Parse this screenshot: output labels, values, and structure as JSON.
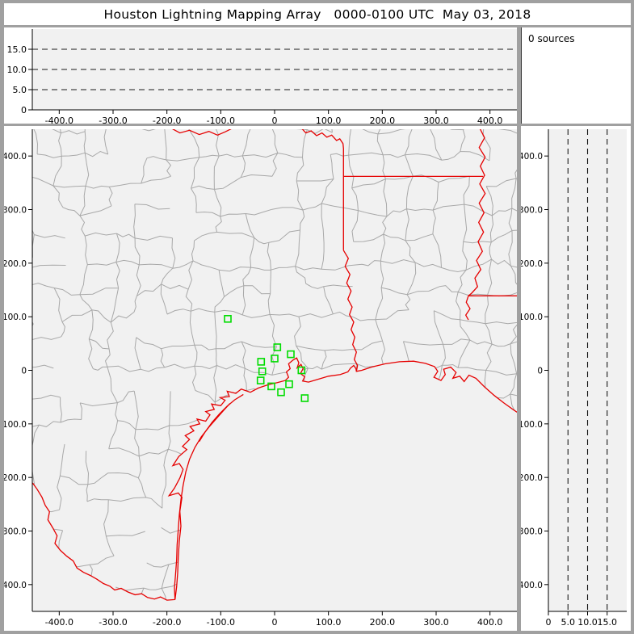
{
  "window": {
    "title": "Houston Lightning Mapping Array   0000-0100 UTC  May 03, 2018"
  },
  "sources_panel": {
    "label": "0 sources"
  },
  "colors": {
    "frame_gray": "#a0a0a0",
    "panel_white": "#ffffff",
    "plot_bg": "#f1f1f1",
    "county_line": "#a8a8a8",
    "state_border_red": "#e60000",
    "station_green": "#00dd00",
    "axis_black": "#000000"
  },
  "xy_axis": {
    "range": [
      -450,
      450
    ],
    "tick_values": [
      -400,
      -300,
      -200,
      -100,
      0,
      100,
      200,
      300,
      400
    ],
    "tick_labels": [
      "-400.0",
      "-300.0",
      "-200.0",
      "-100.0",
      "0",
      "100.0",
      "200.0",
      "300.0",
      "400.0"
    ]
  },
  "alt_axis": {
    "range": [
      0,
      20
    ],
    "tick_values": [
      0,
      5,
      10,
      15
    ],
    "tick_labels": [
      "0",
      "5.0",
      "10.0",
      "15.0"
    ],
    "dashed_gridlines": [
      5,
      10,
      15
    ]
  },
  "map": {
    "stations_km": [
      [
        -87,
        96
      ],
      [
        5,
        43
      ],
      [
        30,
        30
      ],
      [
        0,
        22
      ],
      [
        -25,
        16
      ],
      [
        -23,
        -2
      ],
      [
        50,
        0
      ],
      [
        -26,
        -19
      ],
      [
        -6,
        -30
      ],
      [
        27,
        -26
      ],
      [
        12,
        -41
      ],
      [
        56,
        -52
      ]
    ],
    "county_grid": {
      "seed": 11,
      "cell_km": 50,
      "node_jitter_km": 13,
      "wobble_km": 6,
      "skip_west": 0.32,
      "skip_east": 0.14,
      "west_limit_km": -160
    },
    "borders_km": {
      "red_river_west": [
        [
          -192,
          452
        ],
        [
          -176,
          443
        ],
        [
          -158,
          448
        ],
        [
          -140,
          440
        ],
        [
          -122,
          446
        ],
        [
          -106,
          439
        ],
        [
          -92,
          445
        ],
        [
          -80,
          451
        ]
      ],
      "red_river_east_and_txar": [
        [
          50,
          452
        ],
        [
          58,
          443
        ],
        [
          68,
          447
        ],
        [
          78,
          438
        ],
        [
          88,
          443
        ],
        [
          97,
          435
        ],
        [
          106,
          439
        ],
        [
          115,
          429
        ],
        [
          121,
          432
        ],
        [
          127,
          423
        ],
        [
          128,
          414
        ],
        [
          128,
          224
        ]
      ],
      "ar_la_border": [
        [
          128,
          362
        ],
        [
          387,
          362
        ]
      ],
      "sabine_river": [
        [
          128,
          224
        ],
        [
          137,
          209
        ],
        [
          131,
          194
        ],
        [
          140,
          179
        ],
        [
          134,
          163
        ],
        [
          142,
          148
        ],
        [
          136,
          133
        ],
        [
          144,
          118
        ],
        [
          139,
          104
        ],
        [
          147,
          90
        ],
        [
          142,
          76
        ],
        [
          149,
          62
        ],
        [
          145,
          48
        ],
        [
          152,
          34
        ],
        [
          148,
          20
        ],
        [
          154,
          9
        ],
        [
          152,
          -2
        ]
      ],
      "mississippi_river": [
        [
          381,
          452
        ],
        [
          390,
          434
        ],
        [
          380,
          416
        ],
        [
          391,
          398
        ],
        [
          382,
          381
        ],
        [
          390,
          364
        ],
        [
          381,
          348
        ],
        [
          391,
          330
        ],
        [
          380,
          312
        ],
        [
          389,
          294
        ],
        [
          379,
          276
        ],
        [
          388,
          258
        ],
        [
          378,
          240
        ],
        [
          386,
          222
        ],
        [
          375,
          205
        ],
        [
          383,
          188
        ],
        [
          372,
          172
        ],
        [
          377,
          156
        ],
        [
          366,
          144
        ],
        [
          360,
          139
        ],
        [
          356,
          127
        ],
        [
          363,
          115
        ],
        [
          355,
          103
        ],
        [
          360,
          94
        ]
      ],
      "la_ms_border": [
        [
          360,
          139
        ],
        [
          478,
          139
        ]
      ],
      "gulf_coast": [
        [
          -185,
          -428
        ],
        [
          -182,
          -404
        ],
        [
          -180,
          -378
        ],
        [
          -179,
          -350
        ],
        [
          -177,
          -319
        ],
        [
          -174,
          -291
        ],
        [
          -176,
          -263
        ],
        [
          -172,
          -237
        ],
        [
          -179,
          -229
        ],
        [
          -196,
          -234
        ],
        [
          -186,
          -220
        ],
        [
          -176,
          -201
        ],
        [
          -170,
          -185
        ],
        [
          -177,
          -174
        ],
        [
          -189,
          -178
        ],
        [
          -178,
          -161
        ],
        [
          -163,
          -148
        ],
        [
          -171,
          -142
        ],
        [
          -158,
          -129
        ],
        [
          -166,
          -122
        ],
        [
          -150,
          -113
        ],
        [
          -157,
          -105
        ],
        [
          -139,
          -100
        ],
        [
          -144,
          -91
        ],
        [
          -128,
          -95
        ],
        [
          -120,
          -83
        ],
        [
          -128,
          -77
        ],
        [
          -112,
          -73
        ],
        [
          -117,
          -63
        ],
        [
          -100,
          -66
        ],
        [
          -92,
          -56
        ],
        [
          -101,
          -51
        ],
        [
          -84,
          -49
        ],
        [
          -88,
          -39
        ],
        [
          -72,
          -43
        ],
        [
          -62,
          -35
        ],
        [
          -45,
          -41
        ],
        [
          -30,
          -33
        ],
        [
          -12,
          -27
        ],
        [
          5,
          -23
        ],
        [
          20,
          -19
        ],
        [
          26,
          -13
        ],
        [
          22,
          -3
        ],
        [
          29,
          3
        ],
        [
          26,
          12
        ],
        [
          34,
          19
        ],
        [
          41,
          23
        ],
        [
          45,
          14
        ],
        [
          42,
          5
        ],
        [
          49,
          11
        ],
        [
          53,
          3
        ],
        [
          48,
          -6
        ],
        [
          56,
          -12
        ],
        [
          52,
          -20
        ],
        [
          63,
          -22
        ],
        [
          80,
          -17
        ],
        [
          100,
          -11
        ],
        [
          122,
          -8
        ],
        [
          136,
          -3
        ],
        [
          141,
          4
        ],
        [
          147,
          9
        ],
        [
          151,
          3
        ],
        [
          152,
          -2
        ],
        [
          162,
          0
        ],
        [
          180,
          6
        ],
        [
          205,
          12
        ],
        [
          232,
          16
        ],
        [
          258,
          17
        ],
        [
          280,
          13
        ],
        [
          297,
          7
        ],
        [
          303,
          -2
        ],
        [
          296,
          -13
        ],
        [
          309,
          -19
        ],
        [
          317,
          -8
        ],
        [
          314,
          2
        ],
        [
          327,
          6
        ],
        [
          337,
          -4
        ],
        [
          331,
          -15
        ],
        [
          344,
          -11
        ],
        [
          352,
          -21
        ],
        [
          361,
          -9
        ],
        [
          374,
          -15
        ],
        [
          390,
          -31
        ],
        [
          408,
          -47
        ],
        [
          426,
          -61
        ],
        [
          444,
          -74
        ],
        [
          462,
          -86
        ],
        [
          480,
          -98
        ]
      ],
      "barrier_island_south": [
        [
          -83,
          -62
        ],
        [
          -95,
          -75
        ],
        [
          -108,
          -90
        ],
        [
          -122,
          -106
        ],
        [
          -136,
          -124
        ],
        [
          -148,
          -144
        ],
        [
          -158,
          -166
        ],
        [
          -165,
          -190
        ],
        [
          -170,
          -215
        ],
        [
          -174,
          -242
        ],
        [
          -177,
          -270
        ],
        [
          -179,
          -298
        ],
        [
          -181,
          -326
        ],
        [
          -182,
          -354
        ],
        [
          -184,
          -382
        ],
        [
          -186,
          -406
        ],
        [
          -185,
          -428
        ]
      ],
      "barrier_island_mid": [
        [
          -58,
          -45
        ],
        [
          -74,
          -55
        ],
        [
          -88,
          -67
        ],
        [
          -102,
          -81
        ],
        [
          -116,
          -97
        ],
        [
          -129,
          -115
        ],
        [
          -140,
          -133
        ]
      ],
      "rio_grande": [
        [
          -480,
          -196
        ],
        [
          -462,
          -203
        ],
        [
          -449,
          -211
        ],
        [
          -441,
          -222
        ],
        [
          -432,
          -237
        ],
        [
          -426,
          -252
        ],
        [
          -418,
          -264
        ],
        [
          -421,
          -279
        ],
        [
          -412,
          -294
        ],
        [
          -404,
          -309
        ],
        [
          -408,
          -323
        ],
        [
          -398,
          -336
        ],
        [
          -386,
          -347
        ],
        [
          -374,
          -356
        ],
        [
          -367,
          -369
        ],
        [
          -355,
          -377
        ],
        [
          -342,
          -383
        ],
        [
          -330,
          -390
        ],
        [
          -318,
          -398
        ],
        [
          -306,
          -403
        ],
        [
          -297,
          -410
        ],
        [
          -285,
          -407
        ],
        [
          -272,
          -414
        ],
        [
          -259,
          -419
        ],
        [
          -247,
          -417
        ],
        [
          -236,
          -424
        ],
        [
          -223,
          -427
        ],
        [
          -212,
          -423
        ],
        [
          -200,
          -429
        ],
        [
          -185,
          -428
        ]
      ]
    }
  },
  "chart_data": [
    {
      "type": "scatter",
      "panel": "top-altitude-vs-east-west",
      "title": "",
      "xlabel": "",
      "ylabel": "",
      "x_range": [
        -450,
        450
      ],
      "y_range": [
        0,
        20
      ],
      "x_ticks": [
        "-400.0",
        "-300.0",
        "-200.0",
        "-100.0",
        "0",
        "100.0",
        "200.0",
        "300.0",
        "400.0"
      ],
      "y_ticks": [
        "0",
        "5.0",
        "10.0",
        "15.0"
      ],
      "gridlines_y_dashed": [
        5,
        10,
        15
      ],
      "points": [],
      "note": "0 sources plotted"
    },
    {
      "type": "scatter",
      "panel": "plan-view-map",
      "title": "",
      "x_range": [
        -450,
        450
      ],
      "y_range": [
        -450,
        450
      ],
      "x_ticks": [
        "-400.0",
        "-300.0",
        "-200.0",
        "-100.0",
        "0",
        "100.0",
        "200.0",
        "300.0",
        "400.0"
      ],
      "y_ticks": [
        "-400.0",
        "-300.0",
        "-200.0",
        "-100.0",
        "0",
        "100.0",
        "200.0",
        "300.0",
        "400.0"
      ],
      "series": [
        {
          "name": "lma-stations",
          "marker": "open-green-square",
          "points": [
            [
              -87,
              96
            ],
            [
              5,
              43
            ],
            [
              30,
              30
            ],
            [
              0,
              22
            ],
            [
              -25,
              16
            ],
            [
              -23,
              -2
            ],
            [
              50,
              0
            ],
            [
              -26,
              -19
            ],
            [
              -6,
              -30
            ],
            [
              27,
              -26
            ],
            [
              12,
              -41
            ],
            [
              56,
              -52
            ]
          ]
        },
        {
          "name": "lightning-sources",
          "points": []
        }
      ],
      "basemap": "Texas/Louisiana county lines (gray) with state borders, rivers and Gulf coastline (red)"
    },
    {
      "type": "scatter",
      "panel": "right-north-south-vs-altitude",
      "title": "",
      "x_range": [
        0,
        20
      ],
      "y_range": [
        -450,
        450
      ],
      "x_ticks": [
        "0",
        "5.0",
        "10.0",
        "15.0"
      ],
      "y_ticks": [
        "-400.0",
        "-300.0",
        "-200.0",
        "-100.0",
        "0",
        "100.0",
        "200.0",
        "300.0",
        "400.0"
      ],
      "gridlines_x_dashed": [
        5,
        10,
        15
      ],
      "points": [],
      "note": "0 sources plotted"
    }
  ]
}
